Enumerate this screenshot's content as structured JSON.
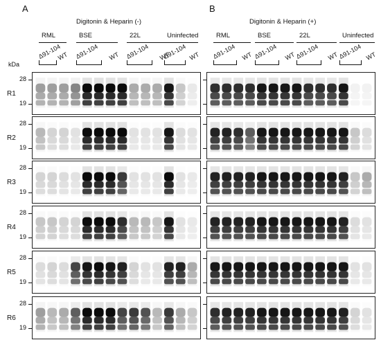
{
  "panels": [
    {
      "letter": "A",
      "condition": "Digitonin & Heparin (-)",
      "groups": [
        {
          "name": "RML",
          "labels": [
            "Δ91-104",
            "WT"
          ]
        },
        {
          "name": "BSE",
          "labels": [
            "Δ91-104",
            "WT"
          ]
        },
        {
          "name": "22L",
          "labels": [
            "Δ91-104",
            "WT"
          ]
        },
        {
          "name": "Uninfected",
          "labels": [
            "Δ91-104",
            "WT"
          ]
        }
      ]
    },
    {
      "letter": "B",
      "condition": "Digitonin & Heparin (+)",
      "groups": [
        {
          "name": "RML",
          "labels": [
            "Δ91-104",
            "WT"
          ]
        },
        {
          "name": "BSE",
          "labels": [
            "Δ91-104",
            "WT"
          ]
        },
        {
          "name": "22L",
          "labels": [
            "Δ91-104",
            "WT"
          ]
        },
        {
          "name": "Uninfected",
          "labels": [
            "Δ91-104",
            "WT"
          ]
        }
      ]
    }
  ],
  "kda_label": "kDa",
  "rows": [
    {
      "label": "R1",
      "mw_top": "28",
      "mw_bottom": "19"
    },
    {
      "label": "R2",
      "mw_top": "28",
      "mw_bottom": "19"
    },
    {
      "label": "R3",
      "mw_top": "28",
      "mw_bottom": "19"
    },
    {
      "label": "R4",
      "mw_top": "28",
      "mw_bottom": "19"
    },
    {
      "label": "R5",
      "mw_top": "28",
      "mw_bottom": "19"
    },
    {
      "label": "R6",
      "mw_top": "28",
      "mw_bottom": "19"
    }
  ],
  "blot_intensity": {
    "lane_order": [
      "RML Δ91-104 (3 lanes)",
      "RML WT",
      "BSE Δ91-104 (3 lanes)",
      "BSE WT",
      "22L Δ91-104 (3 lanes)",
      "22L WT",
      "Uninfected Δ91-104",
      "Uninfected WT"
    ],
    "A": [
      [
        0.35,
        0.35,
        0.35,
        0.45,
        0.95,
        0.95,
        0.95,
        0.95,
        0.3,
        0.3,
        0.3,
        0.9,
        0.2,
        0.08
      ],
      [
        0.25,
        0.15,
        0.15,
        0.1,
        0.95,
        0.95,
        0.95,
        0.95,
        0.1,
        0.1,
        0.1,
        0.9,
        0.12,
        0.1
      ],
      [
        0.15,
        0.15,
        0.12,
        0.1,
        0.95,
        0.95,
        0.95,
        0.75,
        0.1,
        0.1,
        0.1,
        0.95,
        0.1,
        0.08
      ],
      [
        0.2,
        0.2,
        0.15,
        0.15,
        0.95,
        0.95,
        0.95,
        0.8,
        0.25,
        0.25,
        0.2,
        0.9,
        0.1,
        0.08
      ],
      [
        0.12,
        0.15,
        0.12,
        0.7,
        0.9,
        0.95,
        0.9,
        0.85,
        0.15,
        0.1,
        0.1,
        0.85,
        0.85,
        0.3
      ],
      [
        0.35,
        0.25,
        0.3,
        0.6,
        0.95,
        0.95,
        0.95,
        0.7,
        0.75,
        0.65,
        0.25,
        0.75,
        0.3,
        0.2
      ]
    ],
    "B": [
      [
        0.8,
        0.8,
        0.8,
        0.8,
        0.9,
        0.9,
        0.9,
        0.9,
        0.8,
        0.8,
        0.8,
        0.9,
        0.05,
        0.05
      ],
      [
        0.85,
        0.85,
        0.8,
        0.6,
        0.9,
        0.9,
        0.9,
        0.9,
        0.9,
        0.9,
        0.9,
        0.9,
        0.2,
        0.12
      ],
      [
        0.85,
        0.85,
        0.85,
        0.85,
        0.9,
        0.9,
        0.9,
        0.9,
        0.9,
        0.9,
        0.9,
        0.85,
        0.2,
        0.3
      ],
      [
        0.85,
        0.85,
        0.85,
        0.85,
        0.9,
        0.9,
        0.9,
        0.9,
        0.9,
        0.9,
        0.9,
        0.85,
        0.12,
        0.1
      ],
      [
        0.9,
        0.9,
        0.9,
        0.9,
        0.9,
        0.9,
        0.9,
        0.9,
        0.9,
        0.9,
        0.9,
        0.9,
        0.1,
        0.1
      ],
      [
        0.8,
        0.85,
        0.85,
        0.85,
        0.9,
        0.9,
        0.9,
        0.9,
        0.9,
        0.9,
        0.9,
        0.85,
        0.15,
        0.1
      ]
    ]
  }
}
